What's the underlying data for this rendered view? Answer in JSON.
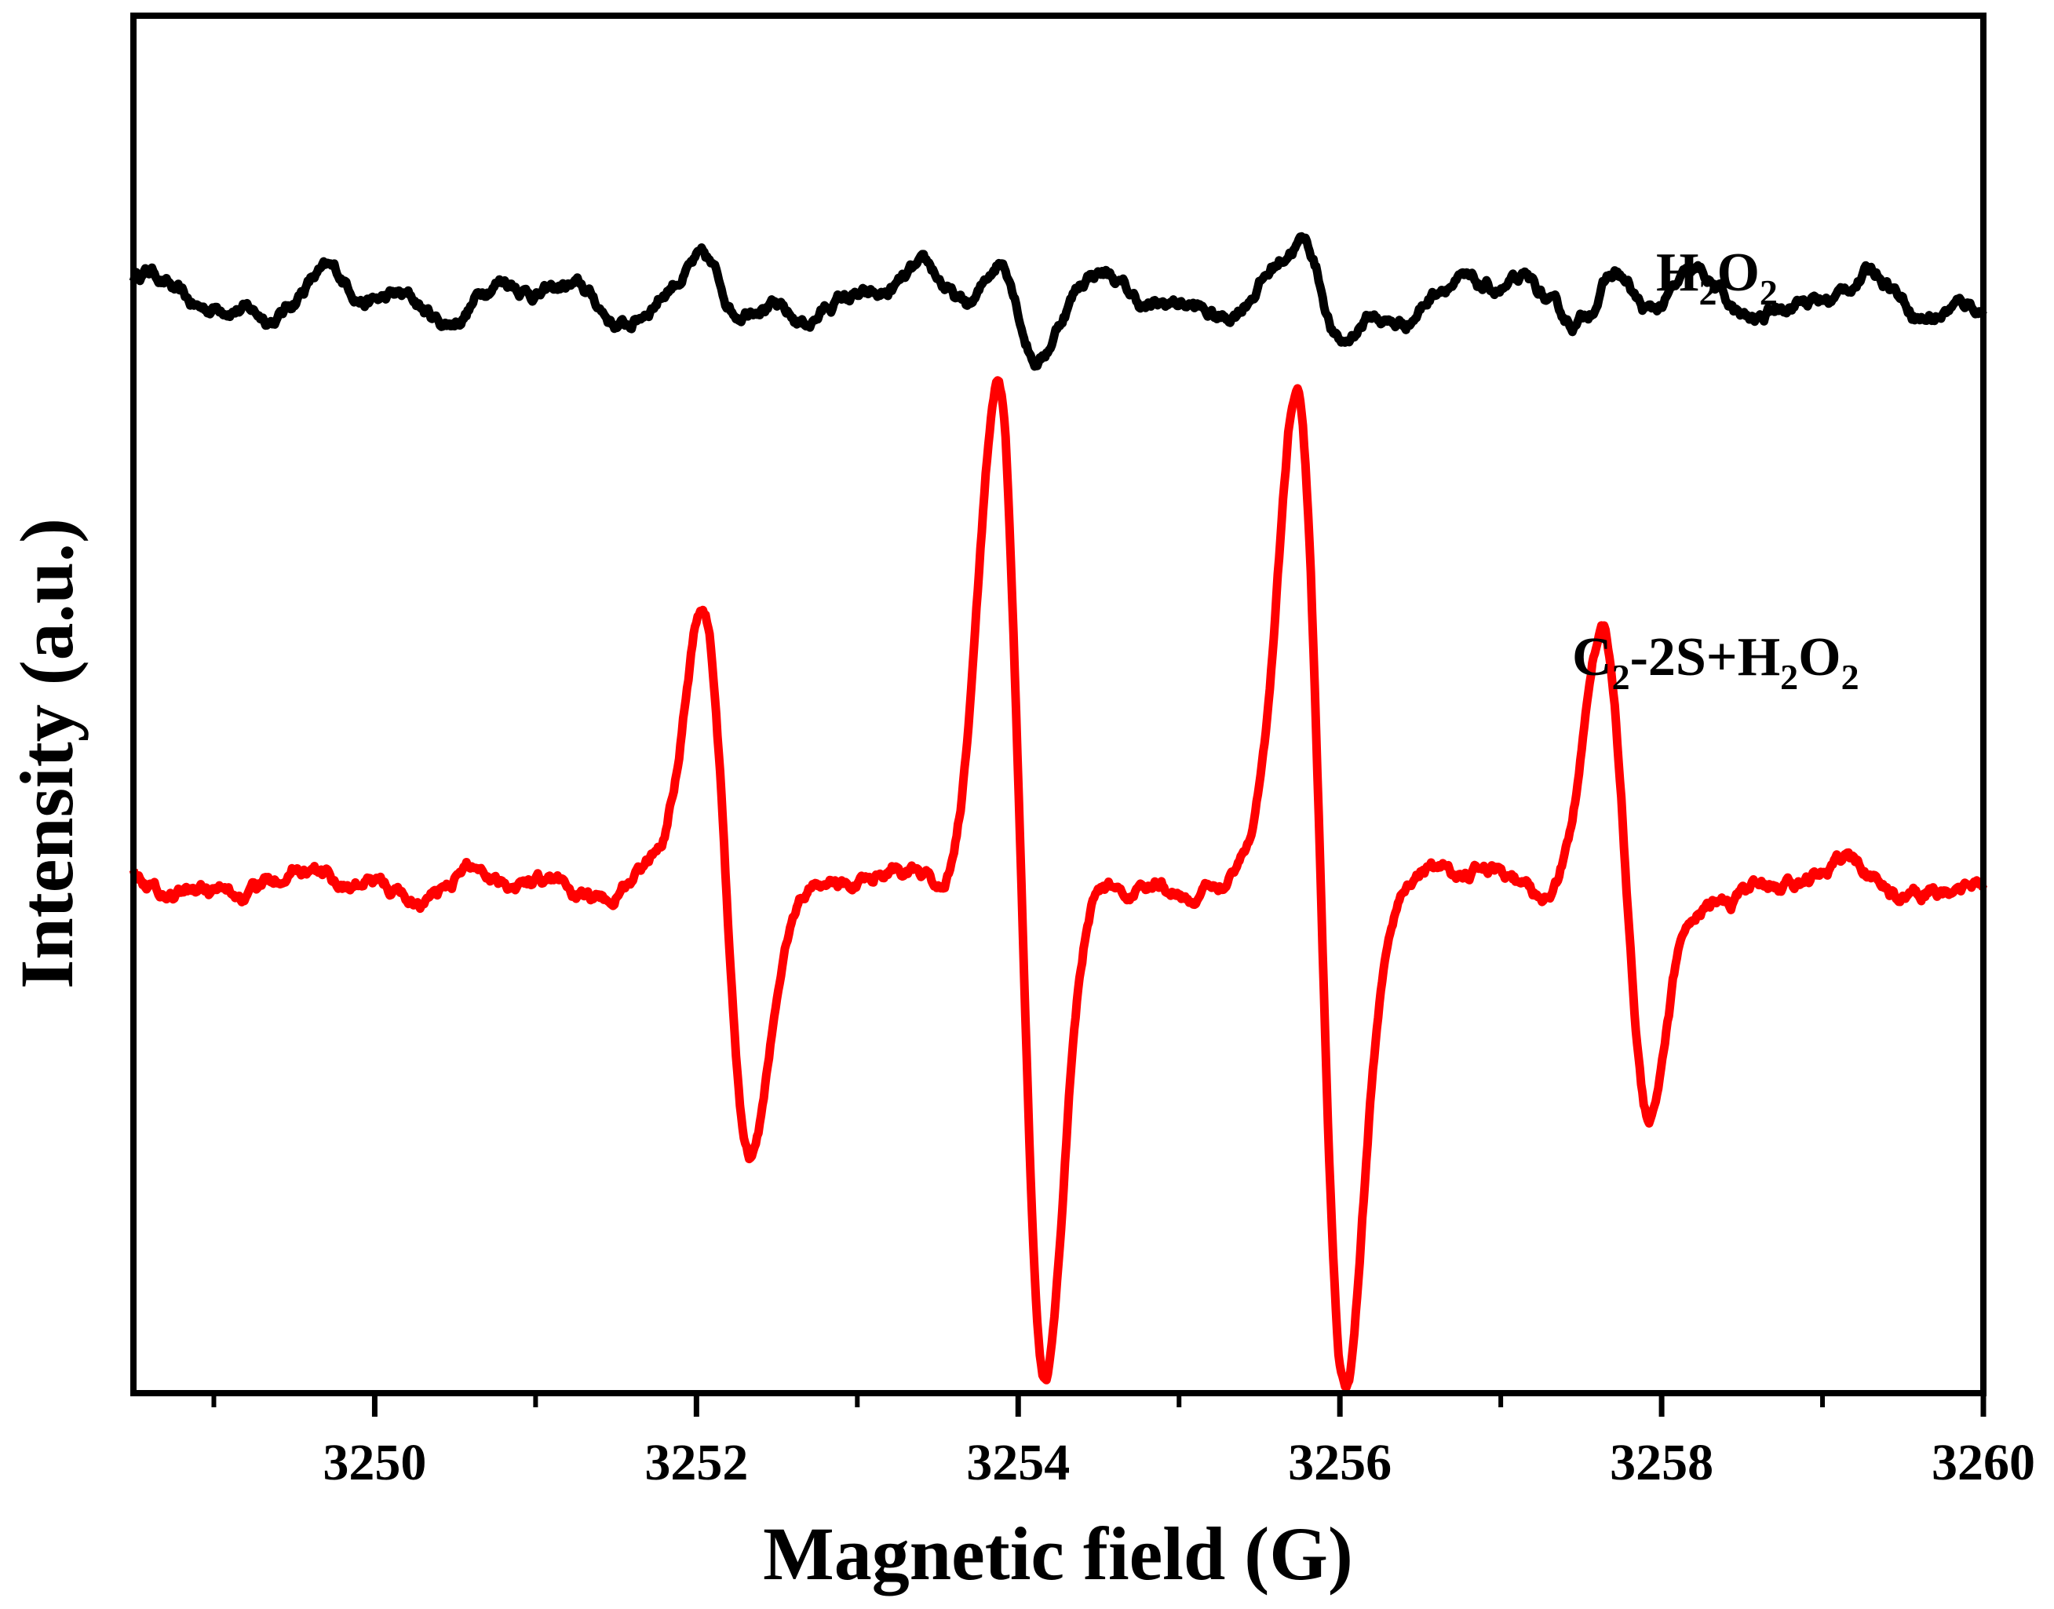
{
  "chart_data": {
    "type": "line",
    "xlabel": "Magnetic field (G)",
    "ylabel": "Intensity (a.u.)",
    "xlim": [
      3248.5,
      3260
    ],
    "ylim": [
      -10,
      10
    ],
    "x_major_ticks": [
      3250,
      3252,
      3254,
      3256,
      3258,
      3260
    ],
    "x_tick_labels": [
      "3250",
      "3252",
      "3254",
      "3256",
      "3258",
      "3260"
    ],
    "x_minor_ticks": [
      3249,
      3251,
      3253,
      3255,
      3257,
      3259
    ],
    "y_ticks_shown": false,
    "legend": "inline labels next to each trace",
    "series": [
      {
        "name": "H2O2",
        "label_main": "H",
        "label_sub1": "2",
        "label_mid": "O",
        "label_sub2": "2",
        "color": "#000000",
        "baseline": 5.9,
        "noise_amplitude": 0.3,
        "peaks": [
          {
            "x": 3252.15,
            "amp": 0.45
          },
          {
            "x": 3254.0,
            "amp": 0.7
          },
          {
            "x": 3255.9,
            "amp": 0.7
          },
          {
            "x": 3257.8,
            "amp": 0.3
          }
        ],
        "peak_width": 0.12
      },
      {
        "name": "C2-2S+H2O2",
        "label_part1": "C",
        "label_sub1": "2",
        "label_part2": "-2S+H",
        "label_sub2": "2",
        "label_part3": "O",
        "label_sub3": "2",
        "color": "#ff0000",
        "baseline": -2.6,
        "peaks": [
          {
            "x": 3252.18,
            "amp": 3.9
          },
          {
            "x": 3254.02,
            "amp": 7.3
          },
          {
            "x": 3255.88,
            "amp": 7.2
          },
          {
            "x": 3257.78,
            "amp": 3.6
          }
        ],
        "peak_width": 0.15
      }
    ]
  }
}
